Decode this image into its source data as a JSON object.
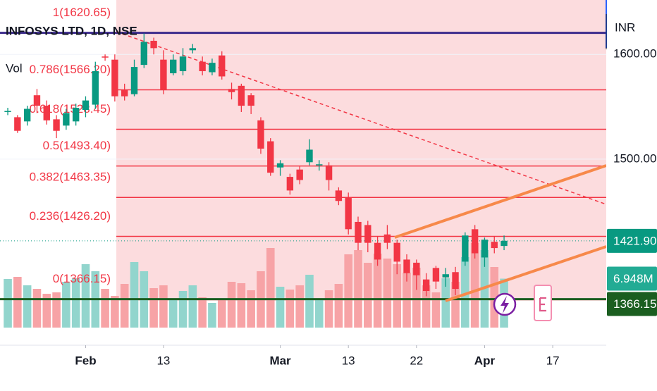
{
  "chart_data": {
    "type": "candlestick",
    "title": "INFOSYS LTD, 1D, NSE",
    "currency": "INR",
    "xlim": [
      -0.8,
      61.5
    ],
    "xticks": [
      {
        "value": 8,
        "label": "Feb"
      },
      {
        "value": 16,
        "label": "13"
      },
      {
        "value": 28,
        "label": "Mar"
      },
      {
        "value": 35,
        "label": "13"
      },
      {
        "value": 42,
        "label": "22"
      },
      {
        "value": 49,
        "label": "Apr"
      },
      {
        "value": 56,
        "label": "17"
      }
    ],
    "ylim": [
      1339,
      1652
    ],
    "yticks": [
      {
        "value": 1500,
        "label": "1500.00"
      },
      {
        "value": 1600,
        "label": "1600.00"
      }
    ],
    "grid": true,
    "up_color": "#089981",
    "down_color": "#f23645",
    "open": [
      1546,
      1540,
      1536,
      1561,
      1551,
      1538,
      1532,
      1536,
      1547,
      1552,
      1598,
      1595,
      1566,
      1562,
      1590,
      1613,
      1595,
      1582,
      1584,
      1604,
      1593,
      1583,
      1599,
      1567,
      1570,
      1561,
      1537,
      1517,
      1492,
      1483,
      1490,
      1497,
      1494,
      1494,
      1470,
      1463,
      1440,
      1437,
      1420,
      1428,
      1420,
      1404,
      1401,
      1385,
      1396,
      1387,
      1392,
      1402,
      1433,
      1406,
      1421,
      1417
    ],
    "high": [
      1549,
      1542,
      1551,
      1567,
      1556,
      1542,
      1548,
      1553,
      1560,
      1593,
      1600,
      1600,
      1572,
      1595,
      1620,
      1616,
      1604,
      1600,
      1606,
      1610,
      1598,
      1596,
      1603,
      1573,
      1572,
      1563,
      1540,
      1520,
      1499,
      1486,
      1493,
      1519,
      1499,
      1497,
      1473,
      1468,
      1445,
      1441,
      1426,
      1437,
      1423,
      1409,
      1404,
      1391,
      1398,
      1396,
      1397,
      1430,
      1437,
      1425,
      1426,
      1427
    ],
    "low": [
      1542,
      1525,
      1532,
      1544,
      1533,
      1520,
      1528,
      1532,
      1540,
      1548,
      1594,
      1555,
      1556,
      1560,
      1587,
      1600,
      1562,
      1580,
      1580,
      1601,
      1580,
      1580,
      1576,
      1557,
      1545,
      1543,
      1505,
      1484,
      1484,
      1466,
      1476,
      1494,
      1489,
      1470,
      1456,
      1428,
      1413,
      1411,
      1398,
      1414,
      1390,
      1383,
      1375,
      1369,
      1376,
      1378,
      1370,
      1398,
      1405,
      1397,
      1410,
      1413
    ],
    "close": [
      1546,
      1527,
      1548,
      1551,
      1537,
      1527,
      1544,
      1549,
      1556,
      1584,
      1597,
      1560,
      1560,
      1588,
      1612,
      1606,
      1566,
      1595,
      1598,
      1606,
      1584,
      1592,
      1579,
      1564,
      1551,
      1551,
      1510,
      1487,
      1496,
      1470,
      1480,
      1509,
      1495,
      1480,
      1460,
      1433,
      1420,
      1420,
      1404,
      1420,
      1402,
      1391,
      1389,
      1374,
      1383,
      1390,
      1376,
      1427,
      1410,
      1423,
      1415,
      1421.9
    ],
    "volume": {
      "name": "Vol",
      "ylim": [
        0,
        46.5
      ],
      "up_color": "#92d5cd",
      "down_color": "#f7a3a6",
      "tag_color": "#22ab94",
      "values": [
        6.9,
        7.2,
        6.0,
        5.5,
        4.8,
        5.0,
        6.5,
        7.0,
        9.0,
        8.0,
        5.5,
        4.5,
        6.2,
        9.3,
        8.0,
        5.6,
        6.0,
        4.0,
        5.2,
        6.0,
        4.3,
        3.5,
        4.0,
        6.5,
        6.3,
        5.3,
        8.0,
        11.3,
        5.8,
        5.4,
        6.0,
        7.5,
        4.0,
        5.3,
        6.2,
        10.4,
        11.0,
        9.2,
        10.5,
        9.8,
        9.0,
        7.8,
        8.5,
        6.0,
        5.0,
        7.0,
        6.5,
        10.0,
        12.0,
        11.0,
        8.6,
        6.948
      ],
      "value_labels": [
        null,
        null,
        null,
        null,
        null,
        null,
        null,
        null,
        null,
        null,
        null,
        null,
        null,
        null,
        null,
        null,
        null,
        null,
        null,
        null,
        null,
        null,
        null,
        null,
        null,
        null,
        null,
        null,
        null,
        null,
        null,
        null,
        null,
        null,
        null,
        null,
        null,
        null,
        null,
        null,
        null,
        null,
        null,
        null,
        null,
        null,
        null,
        null,
        null,
        null,
        null,
        "6.948M"
      ]
    },
    "fib_levels": [
      {
        "label": "1(1620.65)",
        "value": 1620.65,
        "color": "#3b2a8c"
      },
      {
        "label": "0.786(1566.20)",
        "value": 1566.2,
        "color": "#f23645"
      },
      {
        "label": "0.618(1528.45)",
        "value": 1528.45,
        "color": "#f23645"
      },
      {
        "label": "0.5(1493.40)",
        "value": 1493.4,
        "color": "#f23645"
      },
      {
        "label": "0.382(1463.35)",
        "value": 1463.35,
        "color": "#f23645"
      },
      {
        "label": "0.236(1426.20)",
        "value": 1426.2,
        "color": "#f23645"
      },
      {
        "label": "0(1366.15)",
        "value": 1366.15,
        "color": "#1b5e20"
      }
    ],
    "price_tags": [
      {
        "value": 1421.9,
        "label": "1421.90",
        "color": "#089981"
      },
      {
        "value": 1366.15,
        "label": "1366.15",
        "color": "#1b5e20"
      }
    ]
  }
}
